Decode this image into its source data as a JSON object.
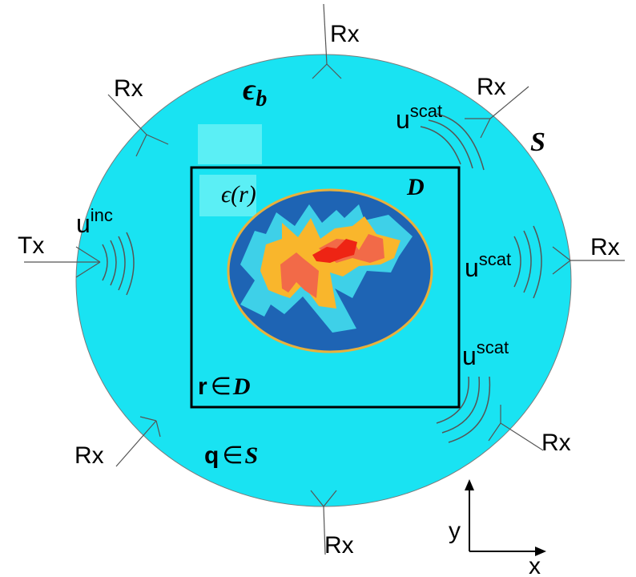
{
  "colors": {
    "background_medium": "#19E3F2",
    "region_box_stroke": "#000000",
    "object_outer": "#1E64B4",
    "object_rim": "#E8B13C",
    "layer_light": "#3ED0E8",
    "layer_orange": "#F9B62C",
    "layer_salmon": "#F26A48",
    "layer_red": "#EE2414",
    "patch": "#5BEFF5"
  },
  "labels": {
    "rx_top": "Rx",
    "rx_upper_left": "Rx",
    "rx_upper_right": "Rx",
    "rx_right": "Rx",
    "rx_lower_right": "Rx",
    "rx_bottom": "Rx",
    "rx_lower_left": "Rx",
    "tx_left": "Tx",
    "background_permittivity": "ϵ",
    "background_permittivity_sub": "b",
    "surface_symbol": "S",
    "domain_symbol": "D",
    "permittivity_func": "ϵ(r)",
    "u_inc_base": "u",
    "u_inc_sup": "inc",
    "u_scat_base_1": "u",
    "u_scat_sup_1": "scat",
    "u_scat_base_2": "u",
    "u_scat_sup_2": "scat",
    "u_scat_base_3": "u",
    "u_scat_sup_3": "scat",
    "r_in_d_var": "r",
    "r_in_d_sym": "∈",
    "r_in_d_set": "D",
    "q_in_s_var": "q",
    "q_in_s_sym": "∈",
    "q_in_s_set": "S",
    "axis_x": "x",
    "axis_y": "y"
  }
}
